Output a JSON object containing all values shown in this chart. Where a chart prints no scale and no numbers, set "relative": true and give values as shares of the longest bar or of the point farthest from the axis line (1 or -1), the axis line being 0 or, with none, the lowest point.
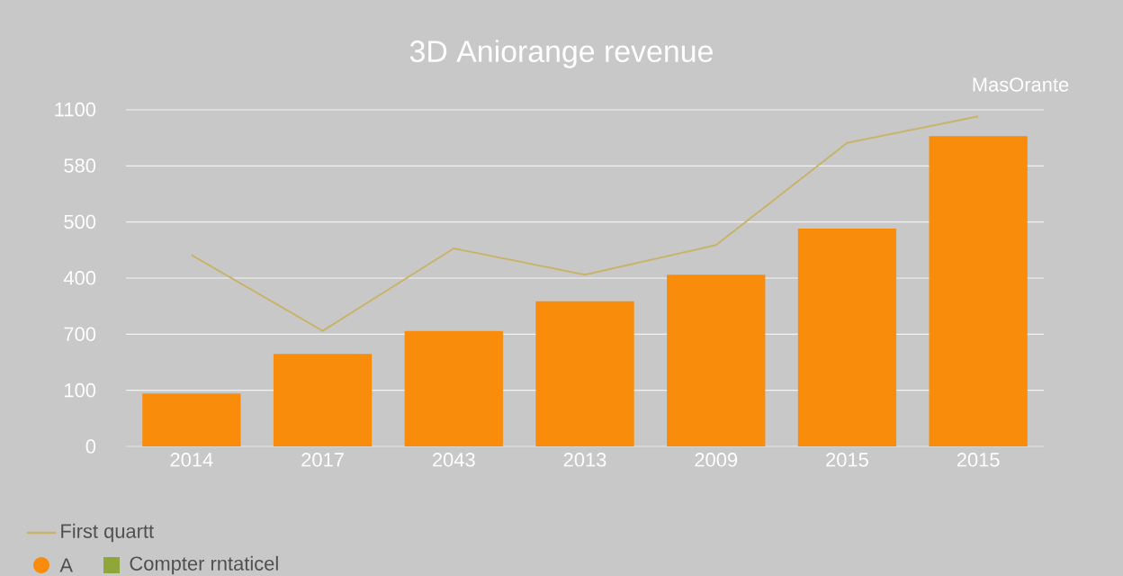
{
  "chart_data": {
    "type": "bar",
    "title": "3D Aniorange revenue",
    "relative": true,
    "categories": [
      "2014",
      "2017",
      "2043",
      "2013",
      "2009",
      "2015",
      "2015"
    ],
    "series": [
      {
        "name": "A",
        "color": "#f98c0a",
        "values": [
          0.16,
          0.28,
          0.35,
          0.44,
          0.52,
          0.66,
          0.94
        ]
      },
      {
        "name": "First quartt",
        "type": "line",
        "color": "#c9b36a",
        "values": [
          0.58,
          0.35,
          0.6,
          0.52,
          0.61,
          0.92,
          1
        ]
      },
      {
        "name": "Compter rntaticel",
        "color": "#8fa63a",
        "values": [
          null,
          null,
          null,
          null,
          null,
          null,
          null
        ]
      }
    ],
    "grid": "y",
    "legend": "bottom left",
    "marker": "none",
    "annotations": [
      "MasOrante",
      "0",
      "100",
      "700",
      "400",
      "500",
      "580",
      "1100"
    ]
  }
}
